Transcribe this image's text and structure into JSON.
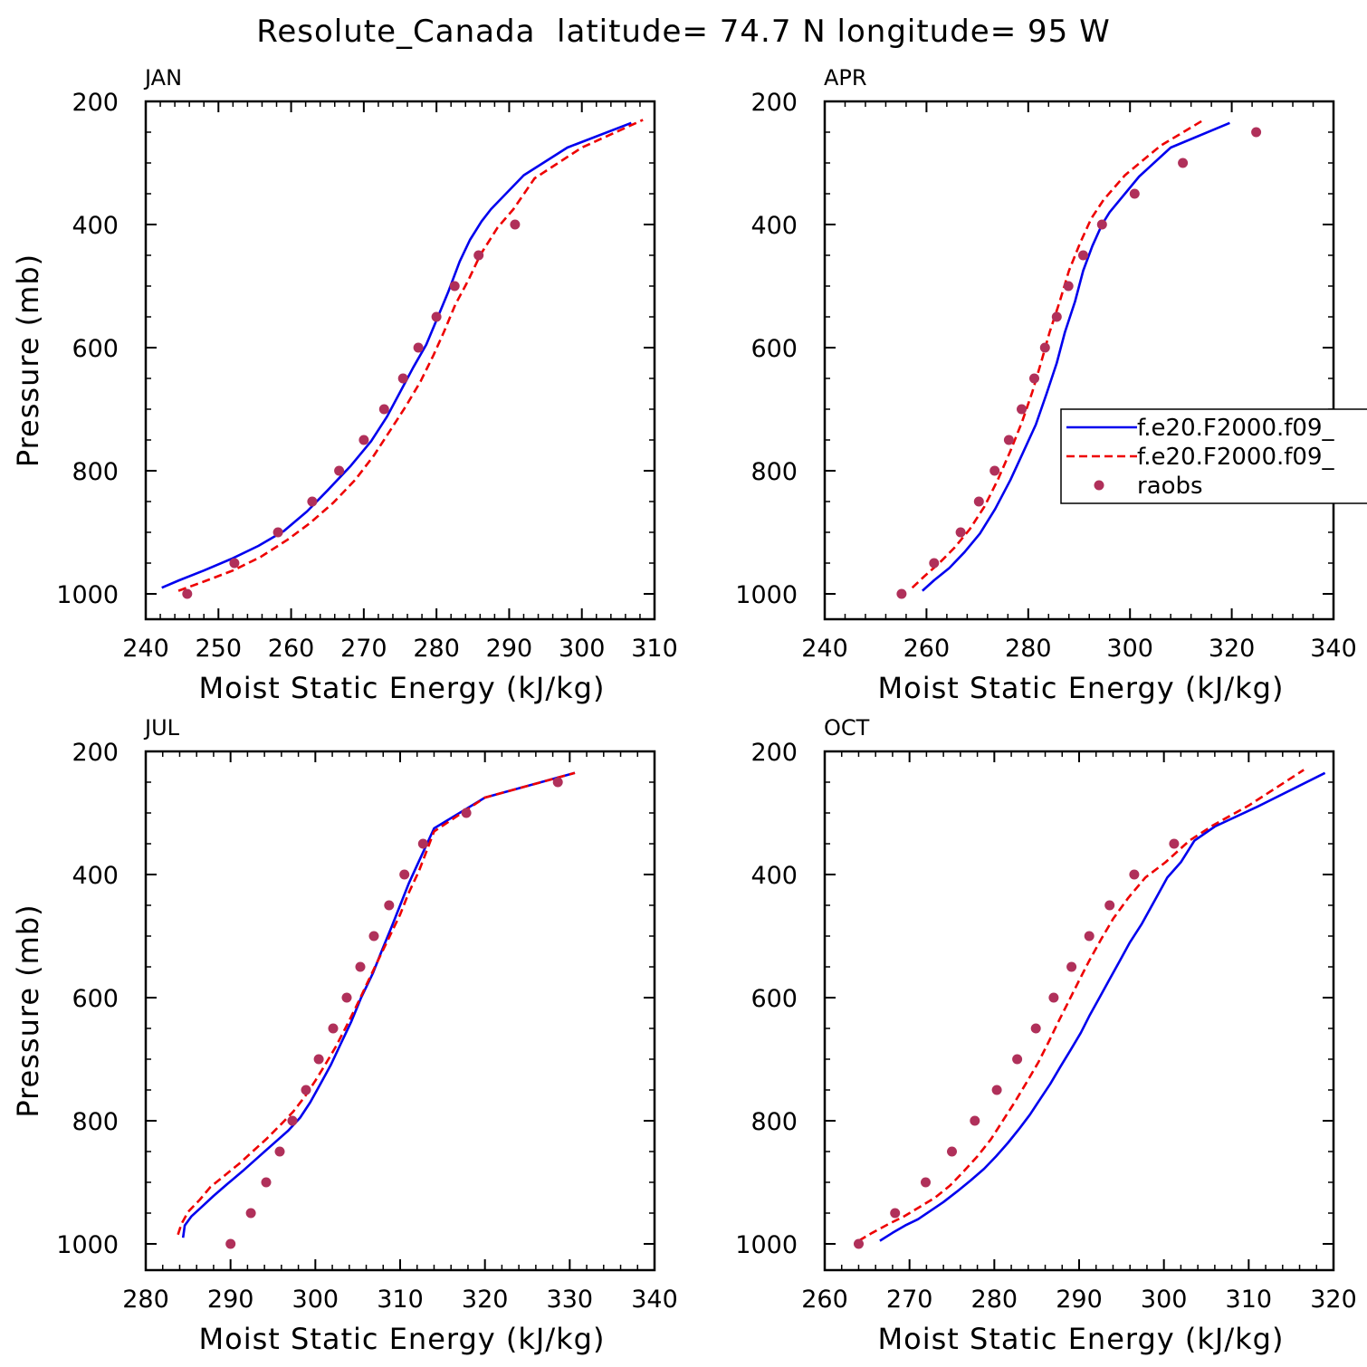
{
  "title": "Resolute_Canada  latitude= 74.7 N longitude= 95 W",
  "colors": {
    "model_a": "#0000ee",
    "model_b": "#ee0000",
    "raobs": "#b0305a"
  },
  "legend": {
    "panel": 1,
    "entries": [
      {
        "label": "f.e20.F2000.f09_",
        "style": "solid",
        "color": "#0000ee"
      },
      {
        "label": "f.e20.F2000.f09_",
        "style": "dashed",
        "color": "#ee0000"
      },
      {
        "label": "raobs",
        "style": "dot",
        "color": "#b0305a"
      }
    ]
  },
  "chart_data": [
    {
      "type": "line",
      "panel_label": "JAN",
      "xlabel": "Moist Static Energy (kJ/kg)",
      "ylabel": "Pressure (mb)",
      "xlim": [
        240,
        310
      ],
      "xticks": [
        240,
        250,
        260,
        270,
        280,
        290,
        300,
        310
      ],
      "ylim": [
        200,
        1000
      ],
      "yticks": [
        200,
        400,
        600,
        800,
        1000
      ],
      "y_inverted": true,
      "series": [
        {
          "style": "solid",
          "points": [
            [
              242.2,
              990
            ],
            [
              244.6,
              978
            ],
            [
              248,
              962
            ],
            [
              252,
              942
            ],
            [
              255.5,
              922
            ],
            [
              259,
              898
            ],
            [
              262.2,
              866
            ],
            [
              265,
              832
            ],
            [
              268.2,
              792
            ],
            [
              271,
              752
            ],
            [
              273.2,
              712
            ],
            [
              275,
              672
            ],
            [
              276.8,
              632
            ],
            [
              278.6,
              595
            ],
            [
              280.2,
              550
            ],
            [
              281.6,
              510
            ],
            [
              283.2,
              460
            ],
            [
              284.6,
              425
            ],
            [
              286.2,
              395
            ],
            [
              287.5,
              375
            ],
            [
              292,
              320
            ],
            [
              298,
              275
            ],
            [
              306.8,
              235
            ]
          ]
        },
        {
          "style": "dashed",
          "points": [
            [
              244.5,
              995
            ],
            [
              248,
              980
            ],
            [
              252,
              962
            ],
            [
              255.8,
              940
            ],
            [
              259.5,
              912
            ],
            [
              262.6,
              885
            ],
            [
              265.8,
              852
            ],
            [
              268.8,
              815
            ],
            [
              271.4,
              775
            ],
            [
              273.6,
              735
            ],
            [
              275.8,
              695
            ],
            [
              277.8,
              655
            ],
            [
              279.6,
              612
            ],
            [
              281,
              575
            ],
            [
              282.6,
              530
            ],
            [
              284.4,
              490
            ],
            [
              286,
              450
            ],
            [
              288.4,
              405
            ],
            [
              290.6,
              375
            ],
            [
              293.5,
              325
            ],
            [
              300,
              275
            ],
            [
              308.4,
              230
            ]
          ]
        }
      ],
      "raobs": [
        [
          245.7,
          1000
        ],
        [
          252.2,
          950
        ],
        [
          258.2,
          900
        ],
        [
          262.9,
          850
        ],
        [
          266.6,
          800
        ],
        [
          270,
          750
        ],
        [
          272.8,
          700
        ],
        [
          275.4,
          650
        ],
        [
          277.5,
          600
        ],
        [
          280,
          550
        ],
        [
          282.5,
          500
        ],
        [
          285.8,
          450
        ],
        [
          290.8,
          400
        ]
      ]
    },
    {
      "type": "line",
      "panel_label": "APR",
      "xlabel": "Moist Static Energy (kJ/kg)",
      "ylabel": "",
      "xlim": [
        240,
        340
      ],
      "xticks": [
        240,
        260,
        280,
        300,
        320,
        340
      ],
      "ylim": [
        200,
        1000
      ],
      "yticks": [
        200,
        400,
        600,
        800,
        1000
      ],
      "y_inverted": true,
      "series": [
        {
          "style": "solid",
          "points": [
            [
              259.2,
              995
            ],
            [
              261.5,
              978
            ],
            [
              264.5,
              958
            ],
            [
              267.5,
              932
            ],
            [
              270.5,
              902
            ],
            [
              273.5,
              862
            ],
            [
              276.5,
              815
            ],
            [
              279,
              770
            ],
            [
              281.5,
              725
            ],
            [
              283.6,
              675
            ],
            [
              285.6,
              625
            ],
            [
              287.2,
              575
            ],
            [
              289.2,
              525
            ],
            [
              290.8,
              475
            ],
            [
              292.6,
              435
            ],
            [
              294.5,
              400
            ],
            [
              296,
              380
            ],
            [
              301.8,
              322
            ],
            [
              308,
              275
            ],
            [
              319.6,
              235
            ]
          ]
        },
        {
          "style": "dashed",
          "points": [
            [
              257.2,
              990
            ],
            [
              259.5,
              972
            ],
            [
              262.5,
              950
            ],
            [
              265.5,
              925
            ],
            [
              268.5,
              895
            ],
            [
              271.4,
              858
            ],
            [
              274,
              815
            ],
            [
              276.5,
              768
            ],
            [
              278.8,
              720
            ],
            [
              280.8,
              672
            ],
            [
              282.6,
              622
            ],
            [
              284.2,
              575
            ],
            [
              286.2,
              525
            ],
            [
              288,
              475
            ],
            [
              290.2,
              430
            ],
            [
              292.4,
              390
            ],
            [
              294.8,
              360
            ],
            [
              299,
              320
            ],
            [
              306,
              272
            ],
            [
              314.5,
              230
            ]
          ]
        }
      ],
      "raobs": [
        [
          255.1,
          1000
        ],
        [
          261.5,
          950
        ],
        [
          266.7,
          900
        ],
        [
          270.3,
          850
        ],
        [
          273.4,
          800
        ],
        [
          276.2,
          750
        ],
        [
          278.7,
          700
        ],
        [
          281.2,
          650
        ],
        [
          283.3,
          600
        ],
        [
          285.6,
          550
        ],
        [
          287.9,
          500
        ],
        [
          290.8,
          450
        ],
        [
          294.5,
          400
        ],
        [
          300.9,
          350
        ],
        [
          310.4,
          300
        ],
        [
          324.8,
          250
        ]
      ]
    },
    {
      "type": "line",
      "panel_label": "JUL",
      "xlabel": "Moist Static Energy (kJ/kg)",
      "ylabel": "Pressure (mb)",
      "xlim": [
        280,
        340
      ],
      "xticks": [
        280,
        290,
        300,
        310,
        320,
        330,
        340
      ],
      "ylim": [
        200,
        1000
      ],
      "yticks": [
        200,
        400,
        600,
        800,
        1000
      ],
      "y_inverted": true,
      "series": [
        {
          "style": "solid",
          "points": [
            [
              284.4,
              990
            ],
            [
              284.6,
              970
            ],
            [
              285.4,
              955
            ],
            [
              286.6,
              940
            ],
            [
              288,
              922
            ],
            [
              289.6,
              903
            ],
            [
              291.4,
              882
            ],
            [
              293.2,
              860
            ],
            [
              295,
              838
            ],
            [
              296.8,
              816
            ],
            [
              298.2,
              795
            ],
            [
              299.4,
              770
            ],
            [
              300.6,
              740
            ],
            [
              301.8,
              710
            ],
            [
              303,
              675
            ],
            [
              304.2,
              640
            ],
            [
              305.4,
              600
            ],
            [
              306.8,
              560
            ],
            [
              307.8,
              525
            ],
            [
              309,
              485
            ],
            [
              310,
              450
            ],
            [
              311,
              415
            ],
            [
              312,
              385
            ],
            [
              314,
              325
            ],
            [
              320,
              275
            ],
            [
              330.6,
              235
            ]
          ]
        },
        {
          "style": "dashed",
          "points": [
            [
              283.8,
              985
            ],
            [
              284.2,
              968
            ],
            [
              285,
              948
            ],
            [
              286.4,
              928
            ],
            [
              287.6,
              908
            ],
            [
              289.2,
              890
            ],
            [
              291,
              870
            ],
            [
              292.6,
              850
            ],
            [
              294.2,
              830
            ],
            [
              296,
              805
            ],
            [
              297.4,
              785
            ],
            [
              298.8,
              760
            ],
            [
              300,
              735
            ],
            [
              301.2,
              708
            ],
            [
              302.4,
              680
            ],
            [
              303.6,
              648
            ],
            [
              304.8,
              615
            ],
            [
              306,
              580
            ],
            [
              307.2,
              545
            ],
            [
              308.6,
              505
            ],
            [
              310,
              465
            ],
            [
              311,
              430
            ],
            [
              312.2,
              395
            ],
            [
              314,
              330
            ],
            [
              320,
              275
            ],
            [
              330.6,
              235
            ]
          ]
        }
      ],
      "raobs": [
        [
          290,
          1000
        ],
        [
          292.4,
          950
        ],
        [
          294.2,
          900
        ],
        [
          295.8,
          850
        ],
        [
          297.3,
          800
        ],
        [
          298.9,
          750
        ],
        [
          300.4,
          700
        ],
        [
          302.1,
          650
        ],
        [
          303.7,
          600
        ],
        [
          305.3,
          550
        ],
        [
          306.9,
          500
        ],
        [
          308.7,
          450
        ],
        [
          310.5,
          400
        ],
        [
          312.7,
          350
        ],
        [
          317.8,
          300
        ],
        [
          328.6,
          250
        ]
      ]
    },
    {
      "type": "line",
      "panel_label": "OCT",
      "xlabel": "Moist Static Energy (kJ/kg)",
      "ylabel": "",
      "xlim": [
        260,
        320
      ],
      "xticks": [
        260,
        270,
        280,
        290,
        300,
        310,
        320
      ],
      "ylim": [
        200,
        1000
      ],
      "yticks": [
        200,
        400,
        600,
        800,
        1000
      ],
      "y_inverted": true,
      "series": [
        {
          "style": "solid",
          "points": [
            [
              266.5,
              995
            ],
            [
              268,
              982
            ],
            [
              269.5,
              970
            ],
            [
              271,
              960
            ],
            [
              272.5,
              946
            ],
            [
              274,
              932
            ],
            [
              275.6,
              915
            ],
            [
              277.2,
              897
            ],
            [
              278.8,
              878
            ],
            [
              280.2,
              858
            ],
            [
              281.6,
              836
            ],
            [
              283,
              812
            ],
            [
              284.2,
              790
            ],
            [
              285.4,
              765
            ],
            [
              286.6,
              740
            ],
            [
              287.8,
              712
            ],
            [
              289,
              685
            ],
            [
              290.2,
              657
            ],
            [
              291.2,
              630
            ],
            [
              292.4,
              600
            ],
            [
              293.6,
              570
            ],
            [
              294.8,
              540
            ],
            [
              296,
              510
            ],
            [
              297.4,
              480
            ],
            [
              299,
              440
            ],
            [
              300.4,
              405
            ],
            [
              302,
              380
            ],
            [
              303.6,
              345
            ],
            [
              306,
              322
            ],
            [
              311,
              290
            ],
            [
              319,
              235
            ]
          ]
        },
        {
          "style": "dashed",
          "points": [
            [
              264,
              995
            ],
            [
              265.6,
              982
            ],
            [
              267.5,
              968
            ],
            [
              269.4,
              955
            ],
            [
              271.2,
              940
            ],
            [
              273,
              925
            ],
            [
              274.8,
              905
            ],
            [
              276.4,
              882
            ],
            [
              278,
              858
            ],
            [
              279.6,
              830
            ],
            [
              281,
              800
            ],
            [
              282.4,
              770
            ],
            [
              283.8,
              738
            ],
            [
              285.2,
              705
            ],
            [
              286.4,
              672
            ],
            [
              287.6,
              638
            ],
            [
              288.8,
              605
            ],
            [
              290,
              572
            ],
            [
              291.2,
              540
            ],
            [
              292.6,
              505
            ],
            [
              294,
              472
            ],
            [
              295.8,
              438
            ],
            [
              297.8,
              405
            ],
            [
              300.2,
              380
            ],
            [
              303,
              345
            ],
            [
              305.8,
              320
            ],
            [
              310,
              288
            ],
            [
              316.5,
              230
            ]
          ]
        }
      ],
      "raobs": [
        [
          264,
          1000
        ],
        [
          268.3,
          950
        ],
        [
          271.9,
          900
        ],
        [
          275,
          850
        ],
        [
          277.7,
          800
        ],
        [
          280.3,
          750
        ],
        [
          282.7,
          700
        ],
        [
          284.9,
          650
        ],
        [
          287,
          600
        ],
        [
          289.1,
          550
        ],
        [
          291.2,
          500
        ],
        [
          293.6,
          450
        ],
        [
          296.5,
          400
        ],
        [
          301.2,
          350
        ]
      ]
    }
  ]
}
